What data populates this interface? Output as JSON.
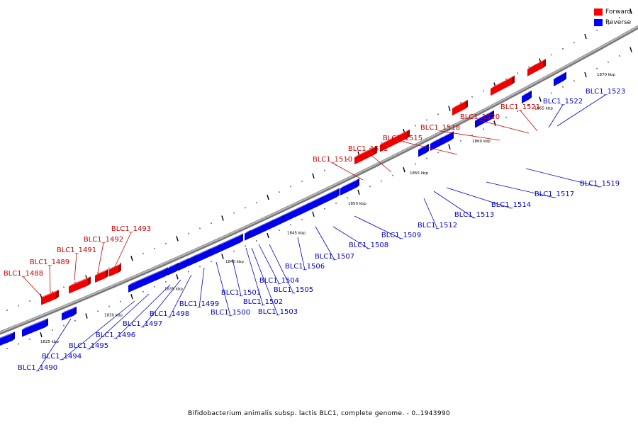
{
  "legend": {
    "forward_label": "Forward",
    "reverse_label": "Reverse",
    "forward_color": "#ff0000",
    "reverse_color": "#0000ff"
  },
  "caption": "Bifidobacterium animalis subsp. lactis BLC1, complete genome. - 0..1943990",
  "ruler_labels": [
    "1825 kbp",
    "1830 kbp",
    "1835 kbp",
    "1840 kbp",
    "1845 kbp",
    "1850 kbp",
    "1855 kbp",
    "1860 kbp",
    "1865 kbp",
    "1870 kbp"
  ],
  "forward_genes": [
    "BLC1_1488",
    "BLC1_1489",
    "BLC1_1491",
    "BLC1_1492",
    "BLC1_1493",
    "BLC1_1510",
    "BLC1_1511",
    "BLC1_1515",
    "BLC1_1518",
    "BLC1_1520",
    "BLC1_1521"
  ],
  "reverse_genes": [
    "BLC1_1490",
    "BLC1_1494",
    "BLC1_1495",
    "BLC1_1496",
    "BLC1_1497",
    "BLC1_1498",
    "BLC1_1499",
    "BLC1_1500",
    "BLC1_1501",
    "BLC1_1502",
    "BLC1_1503",
    "BLC1_1504",
    "BLC1_1505",
    "BLC1_1506",
    "BLC1_1507",
    "BLC1_1508",
    "BLC1_1509",
    "BLC1_1512",
    "BLC1_1513",
    "BLC1_1514",
    "BLC1_1517",
    "BLC1_1519",
    "BLC1_1522",
    "BLC1_1523"
  ]
}
